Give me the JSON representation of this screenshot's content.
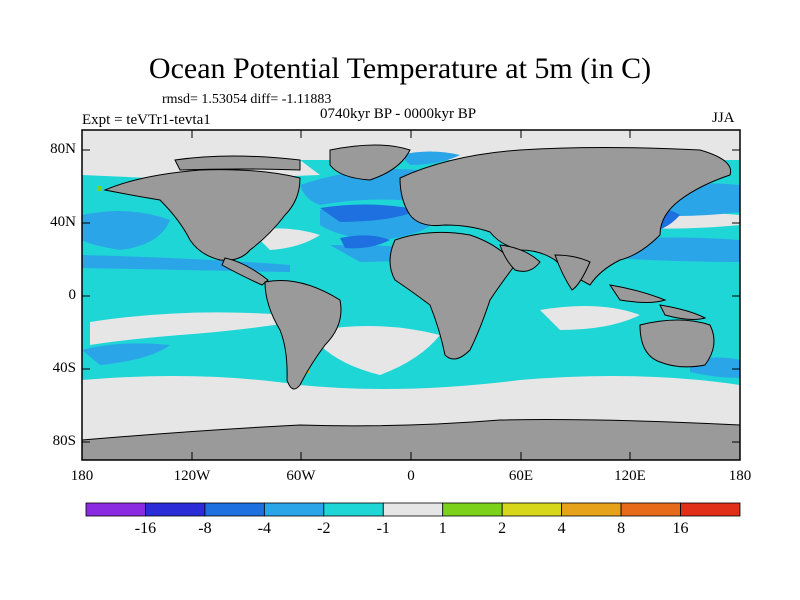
{
  "title": "Ocean Potential Temperature at 5m (in C)",
  "stats": "rmsd= 1.53054 diff= -1.11883",
  "period": "0740kyr BP - 0000kyr BP",
  "experiment": "Expt = teVTr1-tevta1",
  "season": "JJA",
  "lat_ticks": [
    "80N",
    "40N",
    "0",
    "40S",
    "80S"
  ],
  "lon_ticks": [
    "180",
    "120W",
    "60W",
    "0",
    "60E",
    "120E",
    "180"
  ],
  "colorbar": {
    "labels": [
      "-16",
      "-8",
      "-4",
      "-2",
      "-1",
      "1",
      "2",
      "4",
      "8",
      "16"
    ],
    "colors": [
      "#8a2be2",
      "#2b2bd8",
      "#1e6fe0",
      "#2aa6e8",
      "#1fd6d6",
      "#e6e6e6",
      "#7cd11a",
      "#d6d61a",
      "#e6a21a",
      "#e66a1a",
      "#e0301a"
    ]
  },
  "colors": {
    "land": "#9a9a9a",
    "ocean_dominant": "#1fd6d6",
    "ocean_neutral": "#e6e6e6",
    "ocean_cool": "#2aa6e8",
    "ocean_cold": "#1e6fe0"
  }
}
